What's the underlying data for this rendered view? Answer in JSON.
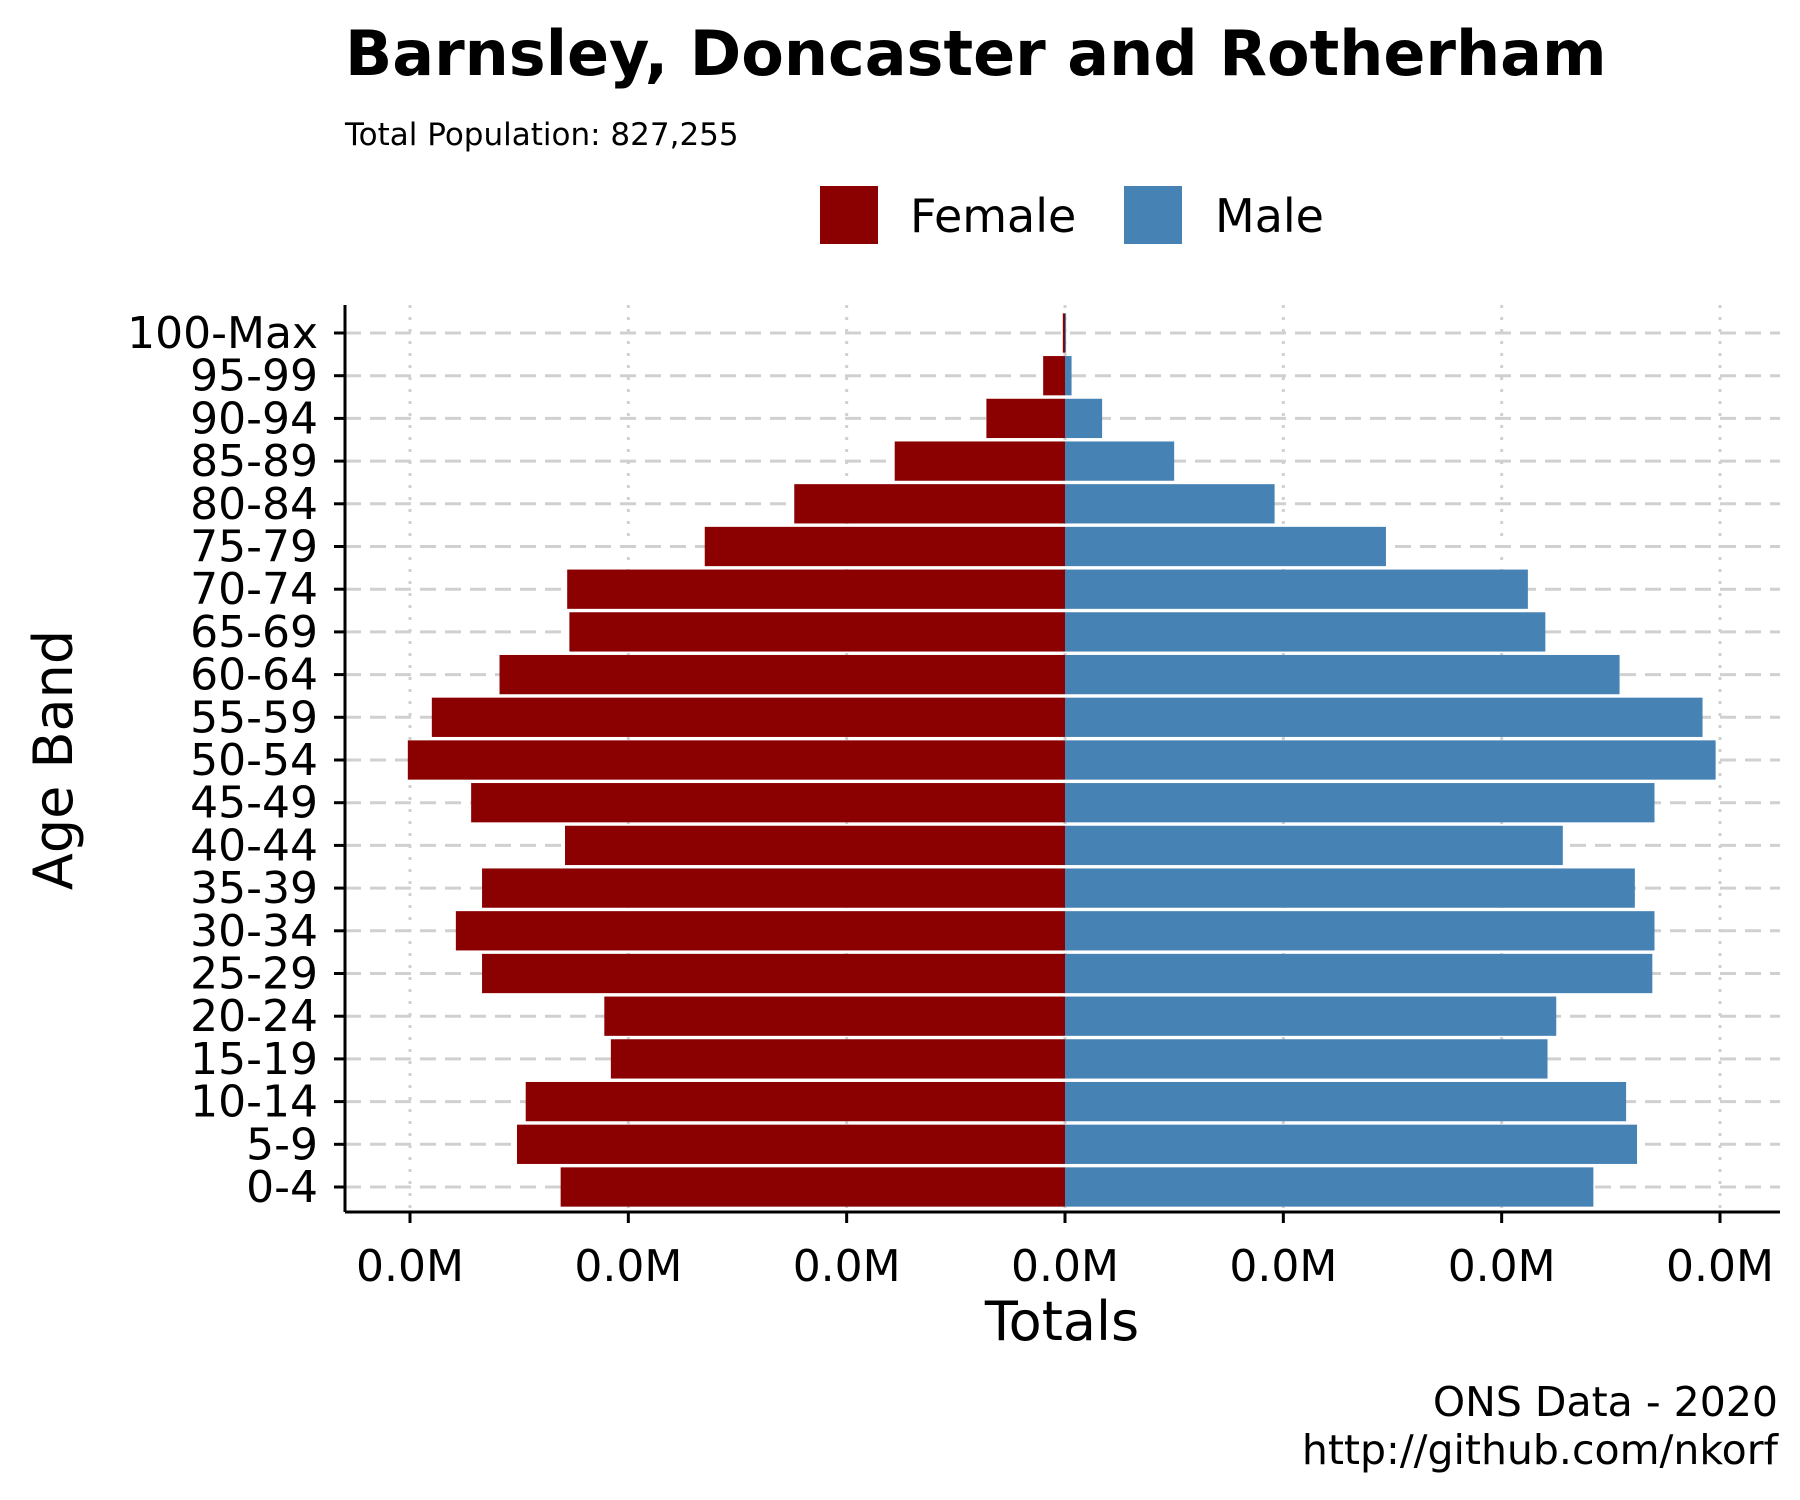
{
  "chart_data": {
    "type": "bar",
    "orientation": "horizontal",
    "title": "Barnsley, Doncaster and Rotherham",
    "subtitle": "Total Population:  827,255",
    "xlabel": "Totals",
    "ylabel": "Age Band",
    "caption_line1": "ONS Data - 2020",
    "caption_line2": "http://github.com/nkorf",
    "categories": [
      "0-4",
      "5-9",
      "10-14",
      "15-19",
      "20-24",
      "25-29",
      "30-34",
      "35-39",
      "40-44",
      "45-49",
      "50-54",
      "55-59",
      "60-64",
      "65-69",
      "70-74",
      "75-79",
      "80-84",
      "85-89",
      "90-94",
      "95-99",
      "100-Max"
    ],
    "series": [
      {
        "name": "Female",
        "color": "#8b0000",
        "values": [
          23100,
          25100,
          24700,
          20800,
          21100,
          26700,
          27900,
          26700,
          22900,
          27200,
          30100,
          29000,
          25900,
          22700,
          22800,
          16500,
          12400,
          7800,
          3600,
          1000,
          100
        ]
      },
      {
        "name": "Male",
        "color": "#4682b4",
        "values": [
          24200,
          26200,
          25700,
          22100,
          22500,
          26900,
          27000,
          26100,
          22800,
          27000,
          29800,
          29200,
          25400,
          22000,
          21200,
          14700,
          9600,
          5000,
          1700,
          300,
          50
        ]
      }
    ],
    "xlim": [
      -30000,
      30000
    ],
    "xticks": [
      -30000,
      -20000,
      -10000,
      0,
      10000,
      20000,
      30000
    ],
    "xtick_labels": [
      "0.0M",
      "0.0M",
      "0.0M",
      "0.0M",
      "0.0M",
      "0.0M",
      "0.0M"
    ],
    "legend_position": "top",
    "grid": "dashed major lines"
  }
}
